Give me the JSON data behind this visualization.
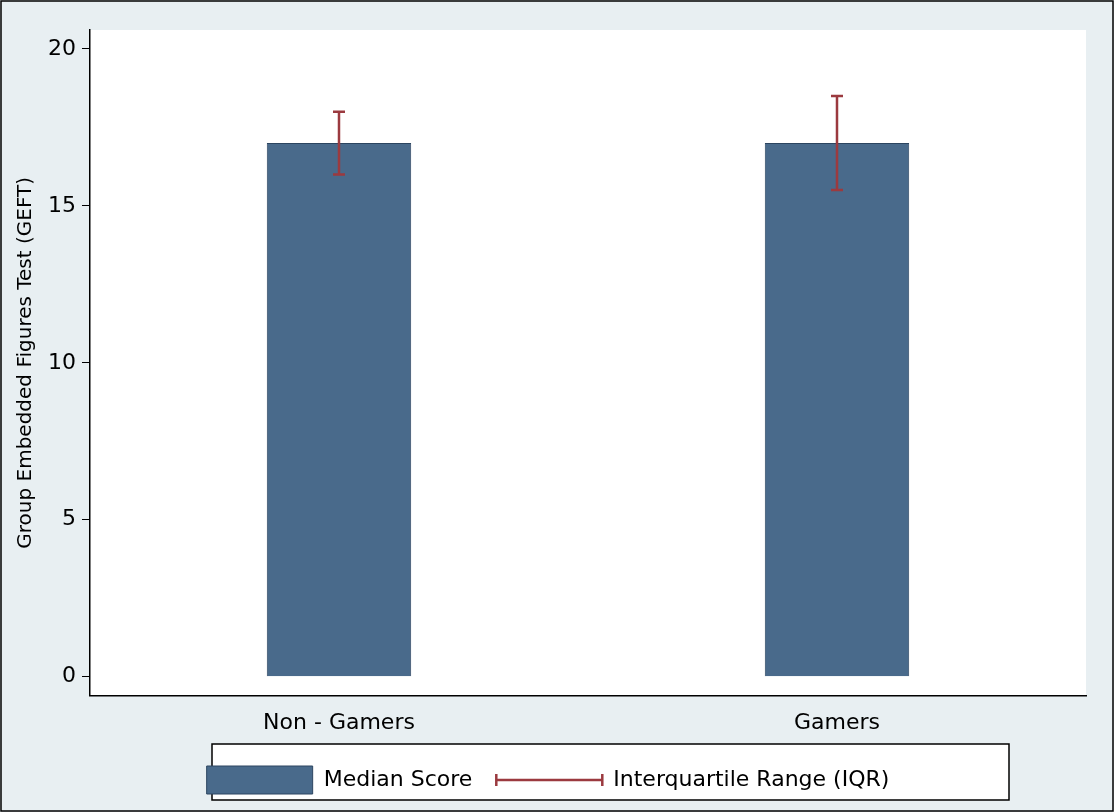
{
  "chart_data": {
    "type": "bar",
    "ylabel": "Group Embedded Figures Test (GEFT)",
    "categories": [
      "Non - Gamers",
      "Gamers"
    ],
    "series": [
      {
        "name": "Median Score",
        "color": "#496a8b",
        "values": [
          17,
          17
        ],
        "errors": [
          [
            16,
            18
          ],
          [
            15.5,
            18.5
          ]
        ]
      }
    ],
    "annotations": [
      "Interquartile Range (IQR)"
    ],
    "ylim": [
      -0.6,
      20.6
    ],
    "yticks": [
      0,
      5,
      10,
      15,
      20
    ],
    "grid": false,
    "legend": "bottom"
  }
}
